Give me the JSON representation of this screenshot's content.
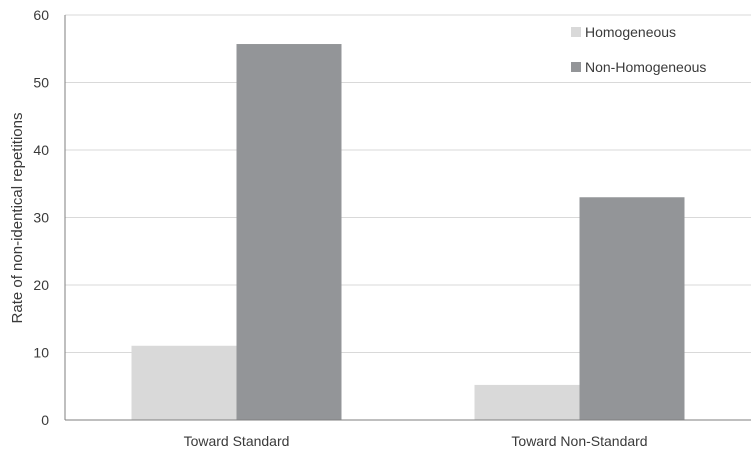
{
  "chart_data": {
    "type": "bar",
    "title": "",
    "xlabel": "",
    "ylabel": "Rate of non-identical repetitions",
    "categories": [
      "Toward Standard",
      "Toward Non-Standard"
    ],
    "series": [
      {
        "name": "Homogeneous",
        "values": [
          11,
          5.2
        ],
        "color": "#d9d9d9"
      },
      {
        "name": "Non-Homogeneous",
        "values": [
          55.7,
          33
        ],
        "color": "#939598"
      }
    ],
    "ylim": [
      0,
      60
    ],
    "yticks": [
      0,
      10,
      20,
      30,
      40,
      50,
      60
    ],
    "grid": true,
    "legend_position": "top-right"
  }
}
